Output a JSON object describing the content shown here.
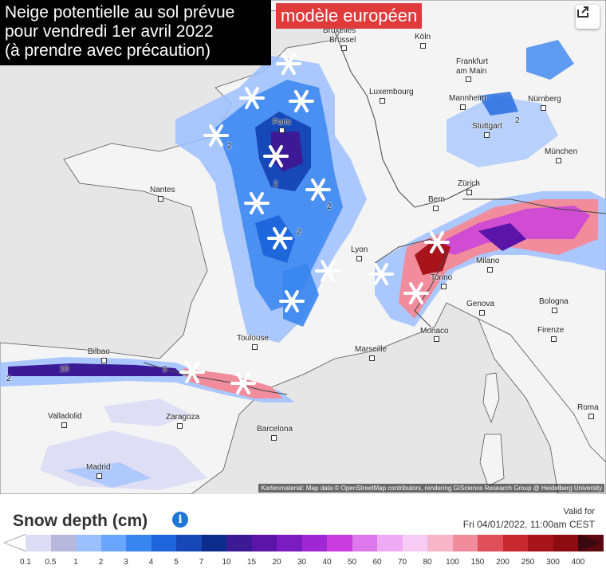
{
  "title": {
    "line1": "Neige potentielle au sol prévue",
    "line2": "pour vendredi 1er avril 2022",
    "line3": "(à prendre avec précaution)",
    "model": "modèle européen"
  },
  "share_icon": "share-icon",
  "cities": [
    {
      "name": "Bruxelles Brüssel",
      "label1": "Bruxelles",
      "label2": "Brüssel"
    },
    {
      "name": "Köln",
      "label1": "Köln"
    },
    {
      "name": "Frankfurt am Main",
      "label1": "Frankfurt",
      "label2": "am Main"
    },
    {
      "name": "Luxembourg",
      "label1": "Luxembourg"
    },
    {
      "name": "Mannheim",
      "label1": "Mannheim"
    },
    {
      "name": "Nürnberg",
      "label1": "Nürnberg"
    },
    {
      "name": "Paris",
      "label1": "Paris"
    },
    {
      "name": "Stuttgart",
      "label1": "Stuttgart"
    },
    {
      "name": "München",
      "label1": "München"
    },
    {
      "name": "Nantes",
      "label1": "Nantes"
    },
    {
      "name": "Zürich",
      "label1": "Zürich"
    },
    {
      "name": "Bern",
      "label1": "Bern"
    },
    {
      "name": "Lyon",
      "label1": "Lyon"
    },
    {
      "name": "Milano",
      "label1": "Milano"
    },
    {
      "name": "Torino",
      "label1": "Torino"
    },
    {
      "name": "Genova",
      "label1": "Genova"
    },
    {
      "name": "Bologna",
      "label1": "Bologna"
    },
    {
      "name": "Monaco",
      "label1": "Monaco"
    },
    {
      "name": "Firenze",
      "label1": "Firenze"
    },
    {
      "name": "Toulouse",
      "label1": "Toulouse"
    },
    {
      "name": "Marseille",
      "label1": "Marseille"
    },
    {
      "name": "Bilbao",
      "label1": "Bilbao"
    },
    {
      "name": "Valladolid",
      "label1": "Valladolid"
    },
    {
      "name": "Zaragoza",
      "label1": "Zaragoza"
    },
    {
      "name": "Barcelona",
      "label1": "Barcelona"
    },
    {
      "name": "Madrid",
      "label1": "Madrid"
    },
    {
      "name": "Roma",
      "label1": "Roma"
    }
  ],
  "attribution": "Kartenmaterial: Map data © OpenStreetMap contributors, rendering GIScience Research Group @ Heidelberg University",
  "legend": {
    "title": "Snow depth (cm)",
    "info_icon": "info-icon",
    "valid_label": "Valid for",
    "valid_time": "Fri 04/01/2022, 11:00am CEST",
    "ticks": [
      "0.1",
      "0.5",
      "1",
      "2",
      "3",
      "4",
      "5",
      "7",
      "10",
      "15",
      "20",
      "30",
      "40",
      "50",
      "60",
      "70",
      "80",
      "100",
      "150",
      "200",
      "250",
      "300",
      "400"
    ],
    "colors": [
      "#dcdcf5",
      "#b8b8dc",
      "#9cc0ff",
      "#6aa6ff",
      "#3a86f0",
      "#1e66dc",
      "#1648b8",
      "#0c2c8c",
      "#3c1a96",
      "#5a14a8",
      "#7a1cc0",
      "#a028d4",
      "#c83ce0",
      "#dc78ec",
      "#eeaaf4",
      "#f6ccf4",
      "#f8b4c8",
      "#f08c9c",
      "#e0505a",
      "#c82830",
      "#a8141c",
      "#8c0c12",
      "#5c0810"
    ]
  },
  "map_values": {
    "contour_labels": [
      "2",
      "2",
      "2",
      "2",
      "2",
      "2",
      "2",
      "2",
      "2",
      "10"
    ]
  }
}
